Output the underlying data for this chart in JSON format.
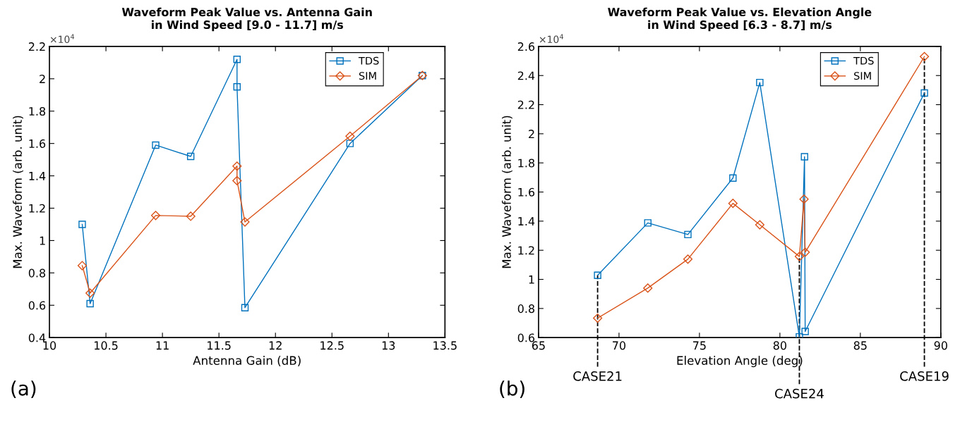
{
  "chart_data": [
    {
      "type": "line",
      "title": "Waveform Peak Value vs. Antenna Gain\nin Wind Speed [9.0 - 11.7] m/s",
      "xlabel": "Antenna Gain (dB)",
      "ylabel": "Max. Waveform (arb. unit)",
      "annotations": [
        "×10$^{4}$",
        "(a)"
      ],
      "xlim": [
        10,
        13.5
      ],
      "xticks": [
        10,
        10.5,
        11,
        11.5,
        12,
        12.5,
        13,
        13.5
      ],
      "ylim": [
        0.4,
        2.2
      ],
      "yticks": [
        0.4,
        0.6,
        0.8,
        1,
        1.2,
        1.4,
        1.6,
        1.8,
        2,
        2.2
      ],
      "legend": "top right",
      "grid": false,
      "series": [
        {
          "name": "TDS",
          "color": "#0072bd",
          "marker": "square",
          "x": [
            10.29,
            10.36,
            10.94,
            11.25,
            11.66,
            11.66,
            11.73,
            12.66,
            13.3
          ],
          "values": [
            1.1,
            0.61,
            1.59,
            1.52,
            2.12,
            1.95,
            0.585,
            1.6,
            2.02
          ]
        },
        {
          "name": "SIM",
          "color": "#d95319",
          "marker": "diamond",
          "x": [
            10.29,
            10.36,
            10.94,
            11.25,
            11.66,
            11.66,
            11.73,
            12.66,
            13.3
          ],
          "values": [
            0.845,
            0.675,
            1.155,
            1.15,
            1.46,
            1.37,
            1.115,
            1.645,
            2.02
          ]
        }
      ]
    },
    {
      "type": "line",
      "title": "Waveform Peak Value vs. Elevation Angle\nin Wind Speed [6.3 - 8.7] m/s",
      "xlabel": "Elevation Angle (deg)",
      "ylabel": "Max. Waveform (arb. unit)",
      "annotations": [
        "×10$^{4}$",
        "(b)"
      ],
      "xlim": [
        65,
        90
      ],
      "xticks": [
        65,
        70,
        75,
        80,
        85,
        90
      ],
      "ylim": [
        0.6,
        2.6
      ],
      "yticks": [
        0.6,
        0.8,
        1,
        1.2,
        1.4,
        1.6,
        1.8,
        2,
        2.2,
        2.4,
        2.6
      ],
      "legend": "top right",
      "grid": false,
      "ref_lines": [
        {
          "axis": "x",
          "value": 68.67,
          "label": "CASE21",
          "color": "#000000",
          "line_style": "dashed"
        },
        {
          "axis": "x",
          "value": 81.21,
          "label": "CASE24",
          "color": "#000000",
          "line_style": "dashed"
        },
        {
          "axis": "x",
          "value": 88.98,
          "label": "CASE19",
          "color": "#000000",
          "line_style": "dashed"
        }
      ],
      "series": [
        {
          "name": "TDS",
          "color": "#0072bd",
          "marker": "square",
          "x": [
            68.67,
            71.79,
            74.28,
            77.08,
            78.75,
            81.21,
            81.53,
            81.57,
            88.98
          ],
          "values": [
            1.028,
            1.388,
            1.308,
            1.696,
            2.352,
            0.605,
            1.842,
            0.642,
            2.28
          ]
        },
        {
          "name": "SIM",
          "color": "#d95319",
          "marker": "diamond",
          "x": [
            68.67,
            71.79,
            74.28,
            77.08,
            78.75,
            81.21,
            81.5,
            81.57,
            88.98
          ],
          "values": [
            0.734,
            0.94,
            1.139,
            1.522,
            1.375,
            1.157,
            1.551,
            1.186,
            2.53
          ]
        }
      ]
    }
  ]
}
